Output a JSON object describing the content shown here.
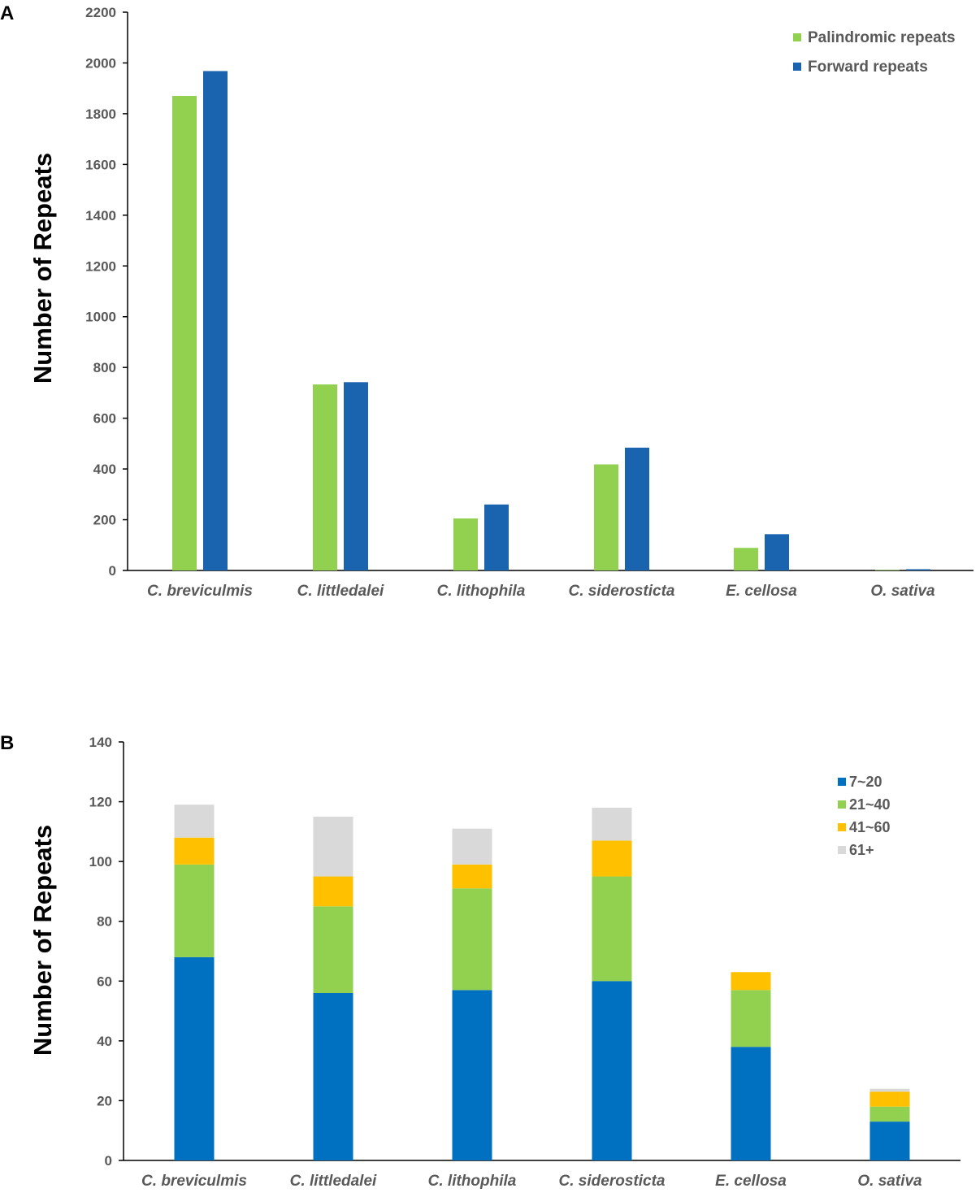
{
  "chart_data": [
    {
      "panel": "A",
      "type": "bar",
      "title": "",
      "xlabel": "",
      "ylabel": "Number of Repeats",
      "ylim": [
        0,
        2200
      ],
      "yticks": [
        0,
        200,
        400,
        600,
        800,
        1000,
        1200,
        1400,
        1600,
        1800,
        2000,
        2200
      ],
      "categories": [
        "C. breviculmis",
        "C. littledalei",
        "C. lithophila",
        "C. siderosticta",
        "E. cellosa",
        "O. sativa"
      ],
      "series": [
        {
          "name": "Palindromic repeats",
          "color": "#92d050",
          "values": [
            1870,
            733,
            205,
            418,
            89,
            2
          ]
        },
        {
          "name": "Forward repeats",
          "color": "#1a63ae",
          "values": [
            1968,
            742,
            260,
            484,
            143,
            5
          ]
        }
      ],
      "legend": "top-right"
    },
    {
      "panel": "B",
      "type": "bar",
      "stacked": true,
      "title": "",
      "xlabel": "",
      "ylabel": "Number of Repeats",
      "ylim": [
        0,
        140
      ],
      "yticks": [
        0,
        20,
        40,
        60,
        80,
        100,
        120,
        140
      ],
      "categories": [
        "C. breviculmis",
        "C. littledalei",
        "C. lithophila",
        "C. siderosticta",
        "E. cellosa",
        "O. sativa"
      ],
      "series": [
        {
          "name": "7~20",
          "color": "#0070c0",
          "values": [
            68,
            56,
            57,
            60,
            38,
            13
          ]
        },
        {
          "name": "21~40",
          "color": "#92d050",
          "values": [
            31,
            29,
            34,
            35,
            19,
            5
          ]
        },
        {
          "name": "41~60",
          "color": "#ffc000",
          "values": [
            9,
            10,
            8,
            12,
            6,
            5
          ]
        },
        {
          "name": "61+",
          "color": "#d9d9d9",
          "values": [
            11,
            20,
            12,
            11,
            0,
            1
          ]
        }
      ],
      "legend": "top-right"
    }
  ]
}
